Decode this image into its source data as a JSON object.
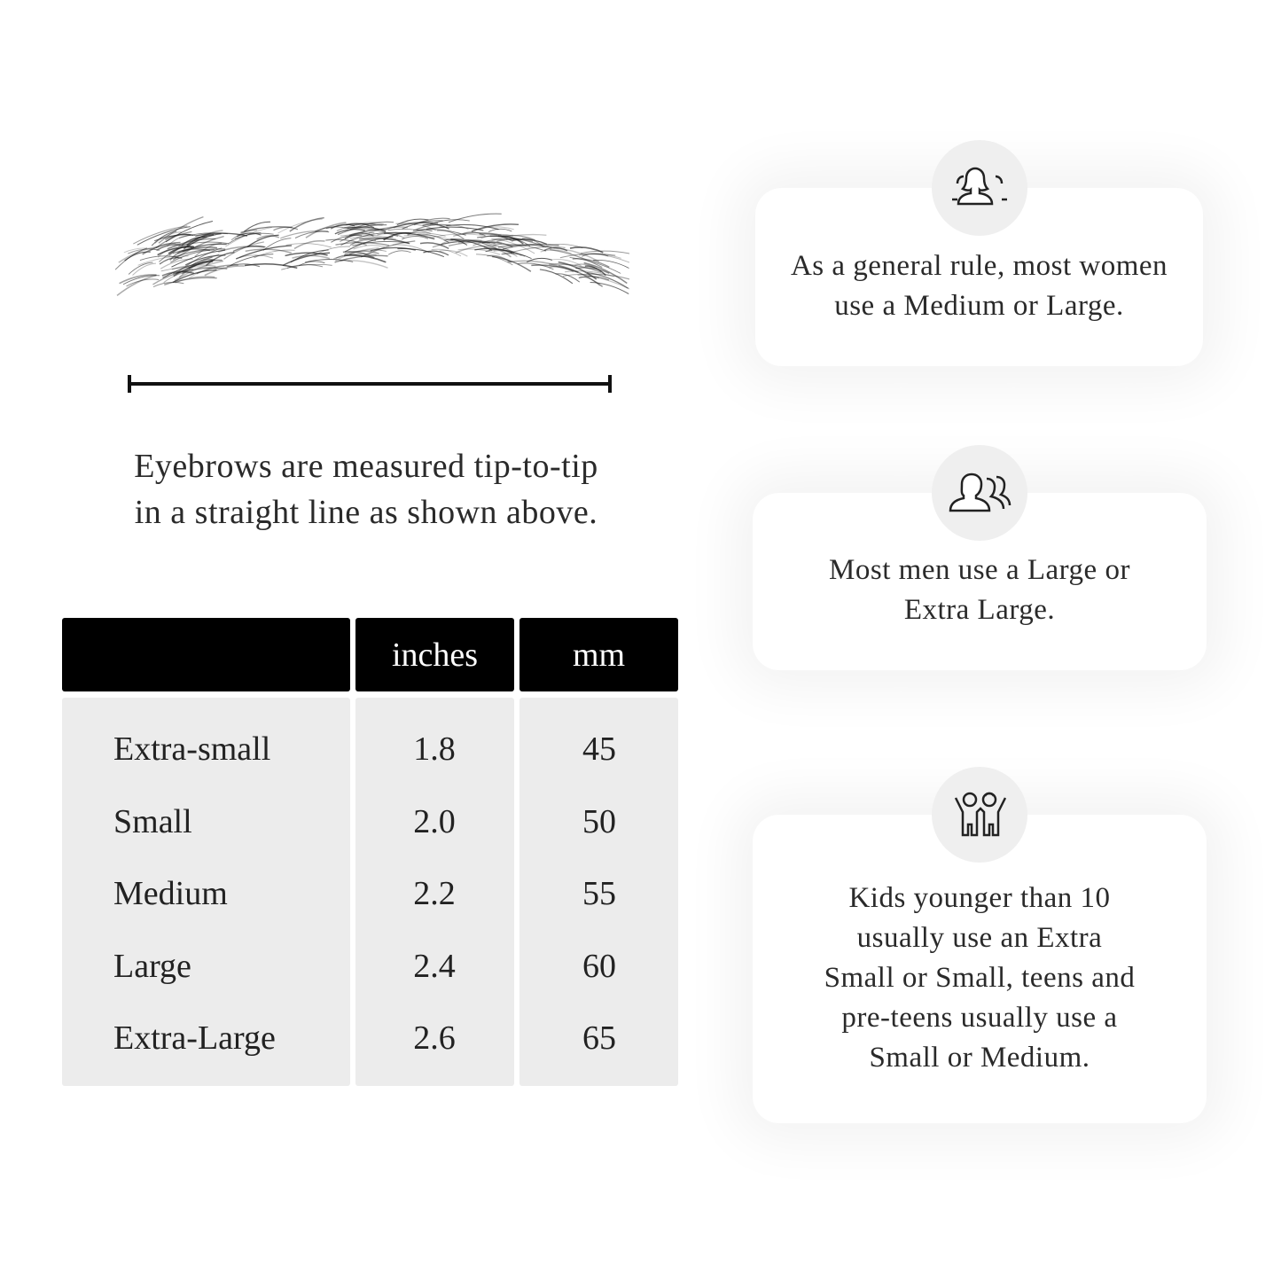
{
  "caption": {
    "line1": "Eyebrows are measured tip-to-tip",
    "line2": "in a straight line as shown above."
  },
  "table": {
    "headers": [
      "",
      "inches",
      "mm"
    ],
    "rows": [
      {
        "size": "Extra-small",
        "inches": "1.8",
        "mm": "45"
      },
      {
        "size": "Small",
        "inches": "2.0",
        "mm": "50"
      },
      {
        "size": "Medium",
        "inches": "2.2",
        "mm": "55"
      },
      {
        "size": "Large",
        "inches": "2.4",
        "mm": "60"
      },
      {
        "size": "Extra-Large",
        "inches": "2.6",
        "mm": "65"
      }
    ]
  },
  "cards": [
    {
      "icon": "women-group-icon",
      "lines": [
        "As a general rule, most women",
        "use a Medium or Large."
      ]
    },
    {
      "icon": "men-group-icon",
      "lines": [
        "Most men use a Large or",
        "Extra Large."
      ]
    },
    {
      "icon": "kids-icon",
      "lines": [
        "Kids younger than 10",
        "usually use an Extra",
        "Small or Small, teens and",
        "pre-teens usually use a",
        "Small or Medium."
      ]
    }
  ],
  "colors": {
    "header_bg": "#000000",
    "body_bg": "#ececec",
    "icon_circle": "#efefef"
  }
}
